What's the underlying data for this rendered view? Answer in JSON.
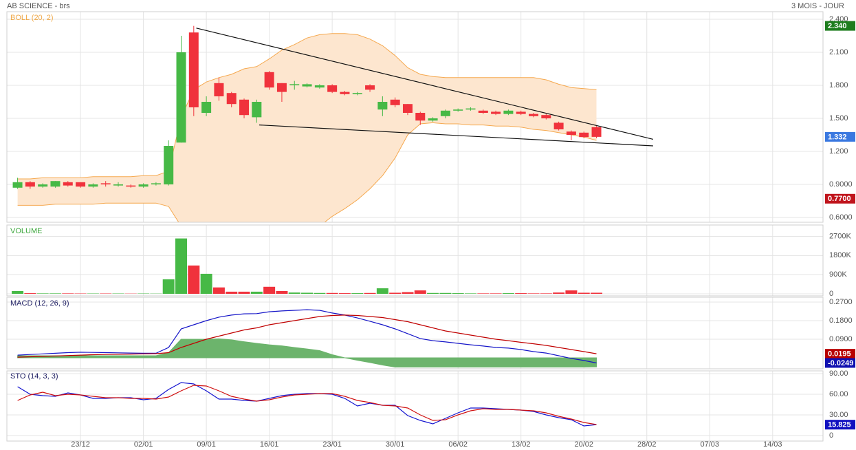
{
  "header": {
    "title": "AB SCIENCE - brs",
    "period": "3 MOIS - JOUR"
  },
  "chart_data": [
    {
      "type": "candlestick",
      "title": "BOLL (20, 2)",
      "title_color": "#f0a848",
      "grid": true,
      "open": [
        0.87,
        0.92,
        0.88,
        0.88,
        0.92,
        0.92,
        0.88,
        0.91,
        0.89,
        0.89,
        0.88,
        0.9,
        0.9,
        1.28,
        2.28,
        1.55,
        1.82,
        1.73,
        1.67,
        1.51,
        1.92,
        1.82,
        1.8,
        1.79,
        1.78,
        1.8,
        1.74,
        1.72,
        1.8,
        1.58,
        1.67,
        1.63,
        1.55,
        1.48,
        1.52,
        1.57,
        1.58,
        1.57,
        1.56,
        1.54,
        1.56,
        1.54,
        1.53,
        1.46,
        1.38,
        1.37,
        1.42
      ],
      "high": [
        0.96,
        0.93,
        0.91,
        0.93,
        0.93,
        0.92,
        0.91,
        0.93,
        0.92,
        0.9,
        0.91,
        0.92,
        1.3,
        2.25,
        2.34,
        1.7,
        1.87,
        1.74,
        1.68,
        1.67,
        1.93,
        1.82,
        1.84,
        1.82,
        1.81,
        1.81,
        1.75,
        1.74,
        1.81,
        1.7,
        1.69,
        1.63,
        1.56,
        1.51,
        1.58,
        1.59,
        1.6,
        1.58,
        1.57,
        1.58,
        1.57,
        1.55,
        1.54,
        1.47,
        1.39,
        1.38,
        1.43
      ],
      "low": [
        0.86,
        0.86,
        0.87,
        0.87,
        0.88,
        0.87,
        0.87,
        0.88,
        0.88,
        0.87,
        0.87,
        0.89,
        0.89,
        1.28,
        1.52,
        1.52,
        1.66,
        1.6,
        1.5,
        1.46,
        1.76,
        1.65,
        1.76,
        1.78,
        1.77,
        1.73,
        1.71,
        1.71,
        1.74,
        1.52,
        1.6,
        1.53,
        1.44,
        1.47,
        1.5,
        1.56,
        1.57,
        1.54,
        1.53,
        1.53,
        1.53,
        1.51,
        1.49,
        1.39,
        1.3,
        1.32,
        1.32
      ],
      "close": [
        0.92,
        0.88,
        0.9,
        0.93,
        0.89,
        0.88,
        0.9,
        0.9,
        0.9,
        0.88,
        0.9,
        0.91,
        1.25,
        2.1,
        1.6,
        1.65,
        1.7,
        1.63,
        1.53,
        1.65,
        1.78,
        1.74,
        1.81,
        1.81,
        1.8,
        1.74,
        1.72,
        1.73,
        1.76,
        1.65,
        1.62,
        1.55,
        1.48,
        1.5,
        1.57,
        1.58,
        1.59,
        1.55,
        1.54,
        1.57,
        1.54,
        1.52,
        1.5,
        1.4,
        1.35,
        1.33,
        1.332
      ],
      "up_color": "#46b946",
      "down_color": "#f0323c",
      "bollinger": {
        "color": "#f5a84e",
        "fill": "#fde6cf",
        "upper": [
          0.95,
          0.95,
          0.96,
          0.96,
          0.96,
          0.96,
          0.97,
          0.97,
          0.97,
          0.97,
          0.98,
          0.98,
          1.02,
          1.51,
          1.76,
          1.83,
          1.87,
          1.9,
          1.95,
          1.97,
          2.04,
          2.12,
          2.17,
          2.23,
          2.26,
          2.27,
          2.27,
          2.26,
          2.22,
          2.16,
          2.07,
          1.96,
          1.9,
          1.88,
          1.87,
          1.87,
          1.87,
          1.87,
          1.87,
          1.87,
          1.87,
          1.87,
          1.85,
          1.81,
          1.78,
          1.77,
          1.76
        ],
        "lower": [
          0.71,
          0.71,
          0.71,
          0.72,
          0.72,
          0.72,
          0.72,
          0.73,
          0.73,
          0.73,
          0.73,
          0.73,
          0.7,
          0.52,
          0.4,
          0.36,
          0.34,
          0.33,
          0.33,
          0.33,
          0.36,
          0.38,
          0.4,
          0.44,
          0.52,
          0.61,
          0.68,
          0.76,
          0.86,
          0.98,
          1.14,
          1.35,
          1.45,
          1.46,
          1.45,
          1.45,
          1.44,
          1.44,
          1.43,
          1.43,
          1.42,
          1.4,
          1.39,
          1.37,
          1.35,
          1.33,
          1.3
        ]
      },
      "trendline_color": "#111111",
      "trendlines": [
        {
          "x": [
            14.2,
            50.5
          ],
          "y": [
            2.32,
            1.31
          ]
        },
        {
          "x": [
            19.2,
            50.5
          ],
          "y": [
            1.44,
            1.25
          ]
        }
      ],
      "ylim": [
        0.5625,
        2.4625
      ],
      "yticks": [
        {
          "value": 2.4,
          "label": "2.400"
        },
        {
          "value": 2.1,
          "label": "2.100"
        },
        {
          "value": 1.8,
          "label": "1.800"
        },
        {
          "value": 1.5,
          "label": "1.500"
        },
        {
          "value": 1.2,
          "label": "1.200"
        },
        {
          "value": 0.9,
          "label": "0.9000"
        },
        {
          "value": 0.6,
          "label": "0.6000"
        }
      ],
      "markers": [
        {
          "value": 2.34,
          "label": "2.340",
          "color": "#1e7d1e"
        },
        {
          "value": 1.332,
          "label": "1.332",
          "color": "#3a78e0"
        },
        {
          "value": 0.77,
          "label": "0.7700",
          "color": "#c0141c"
        }
      ]
    },
    {
      "type": "bar",
      "title": "VOLUME",
      "title_color": "#3aa53a",
      "grid": true,
      "values": [
        130000,
        30000,
        20000,
        20000,
        20000,
        15000,
        15000,
        15000,
        15000,
        10000,
        15000,
        10000,
        680000,
        2600000,
        1330000,
        940000,
        300000,
        100000,
        100000,
        100000,
        330000,
        130000,
        60000,
        50000,
        40000,
        40000,
        30000,
        30000,
        40000,
        260000,
        50000,
        80000,
        160000,
        40000,
        40000,
        30000,
        20000,
        20000,
        20000,
        30000,
        30000,
        20000,
        20000,
        60000,
        160000,
        50000,
        50000
      ],
      "ylim": [
        0,
        3200000
      ],
      "yticks": [
        {
          "value": 2700000,
          "label": "2700K"
        },
        {
          "value": 1800000,
          "label": "1800K"
        },
        {
          "value": 900000,
          "label": "900K"
        },
        0
      ]
    },
    {
      "type": "line",
      "title": "MACD (12, 26, 9)",
      "title_color": "#1a1a60",
      "grid": true,
      "series": [
        {
          "style": "area",
          "color": "#6cb46c",
          "values": [
            0.01,
            0.01,
            0.01,
            0.01,
            0.01,
            0.01,
            0.01,
            0.01,
            0.01,
            0.01,
            0.01,
            0.01,
            0.025,
            0.09,
            0.09,
            0.09,
            0.092,
            0.087,
            0.078,
            0.07,
            0.063,
            0.058,
            0.05,
            0.043,
            0.035,
            0.015,
            0,
            -0.012,
            -0.023,
            -0.035,
            -0.045,
            -0.045,
            -0.045,
            -0.045,
            -0.045,
            -0.045,
            -0.045,
            -0.045,
            -0.045,
            -0.045,
            -0.045,
            -0.045,
            -0.045,
            -0.045,
            -0.045,
            -0.045,
            -0.044
          ]
        },
        {
          "color": "#1515c8",
          "values": [
            0.013,
            0.016,
            0.019,
            0.022,
            0.025,
            0.027,
            0.026,
            0.025,
            0.024,
            0.023,
            0.022,
            0.022,
            0.05,
            0.14,
            0.16,
            0.18,
            0.197,
            0.207,
            0.213,
            0.214,
            0.223,
            0.227,
            0.23,
            0.233,
            0.23,
            0.217,
            0.207,
            0.193,
            0.177,
            0.16,
            0.14,
            0.117,
            0.093,
            0.083,
            0.077,
            0.07,
            0.063,
            0.057,
            0.05,
            0.047,
            0.04,
            0.03,
            0.023,
            0.01,
            -0.003,
            -0.013,
            -0.0249
          ]
        },
        {
          "color": "#c00000",
          "values": [
            0.003,
            0.005,
            0.007,
            0.009,
            0.011,
            0.013,
            0.015,
            0.016,
            0.017,
            0.018,
            0.019,
            0.02,
            0.025,
            0.05,
            0.07,
            0.09,
            0.105,
            0.12,
            0.135,
            0.145,
            0.16,
            0.17,
            0.18,
            0.19,
            0.2,
            0.205,
            0.207,
            0.205,
            0.2,
            0.195,
            0.185,
            0.175,
            0.16,
            0.145,
            0.13,
            0.12,
            0.11,
            0.1,
            0.09,
            0.083,
            0.075,
            0.068,
            0.06,
            0.05,
            0.04,
            0.03,
            0.0195
          ]
        }
      ],
      "ylim": [
        -0.05,
        0.29
      ],
      "yticks": [
        {
          "value": 0.27,
          "label": "0.2700"
        },
        {
          "value": 0.18,
          "label": "0.1800"
        },
        {
          "value": 0.09,
          "label": "0.0900"
        }
      ],
      "markers": [
        {
          "value": 0.0195,
          "label": "0.0195",
          "color": "#b80000"
        },
        {
          "value": -0.0249,
          "label": "-0.0249",
          "color": "#1010b0"
        }
      ]
    },
    {
      "type": "line",
      "title": "STO (14, 3, 3)",
      "title_color": "#1a1a60",
      "grid": true,
      "series": [
        {
          "color": "#1515d0",
          "values": [
            71,
            60,
            58,
            57,
            62,
            59,
            54,
            54,
            55,
            55,
            52,
            54,
            67,
            77,
            75,
            65,
            53,
            53,
            51,
            50,
            54,
            58,
            60,
            61,
            61,
            60,
            54,
            43,
            47,
            44,
            44,
            29,
            22,
            17,
            25,
            33,
            40,
            40,
            39,
            38,
            37,
            35,
            30,
            26,
            23,
            14,
            15.825
          ]
        },
        {
          "color": "#d01010",
          "values": [
            51,
            59,
            63,
            58,
            60,
            59,
            57,
            55,
            55,
            54,
            54,
            53,
            56,
            65,
            73,
            72,
            65,
            57,
            53,
            50,
            52,
            56,
            59,
            60,
            61,
            61,
            57,
            51,
            48,
            44,
            43,
            40,
            30,
            22,
            23,
            30,
            36,
            39,
            38,
            38,
            37,
            36,
            33,
            28,
            24,
            19,
            16
          ]
        }
      ],
      "ylim": [
        -7,
        93
      ],
      "yticks": [
        {
          "value": 90,
          "label": "90.00"
        },
        {
          "value": 60,
          "label": "60.00"
        },
        {
          "value": 30,
          "label": "30.00"
        },
        0
      ],
      "markers": [
        {
          "value": 15.825,
          "label": "15.825",
          "color": "#1010c0"
        }
      ],
      "xlim": [
        -0.85,
        64
      ],
      "xticks": [
        {
          "value": 5,
          "label": "23/12"
        },
        {
          "value": 10,
          "label": "02/01"
        },
        {
          "value": 15,
          "label": "09/01"
        },
        {
          "value": 20,
          "label": "16/01"
        },
        {
          "value": 25,
          "label": "23/01"
        },
        {
          "value": 30,
          "label": "30/01"
        },
        {
          "value": 35,
          "label": "06/02"
        },
        {
          "value": 40,
          "label": "13/02"
        },
        {
          "value": 45,
          "label": "20/02"
        },
        {
          "value": 50,
          "label": "28/02"
        },
        {
          "value": 55,
          "label": "07/03"
        },
        {
          "value": 60,
          "label": "14/03"
        }
      ]
    }
  ]
}
